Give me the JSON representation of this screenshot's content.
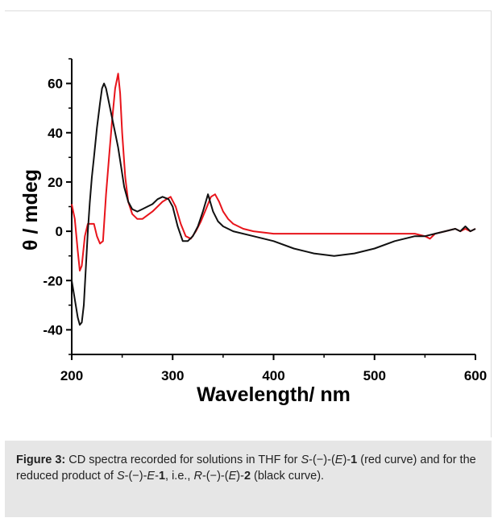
{
  "chart_data": {
    "type": "line",
    "xlabel": "Wavelength/ nm",
    "ylabel": "θ / mdeg",
    "xlim": [
      200,
      600
    ],
    "ylim": [
      -50,
      70
    ],
    "xticks": [
      "200",
      "300",
      "400",
      "500",
      "600"
    ],
    "yticks": [
      "-40",
      "-20",
      "0",
      "20",
      "40",
      "60"
    ],
    "xtick_values": [
      200,
      300,
      400,
      500,
      600
    ],
    "ytick_values": [
      -40,
      -20,
      0,
      20,
      40,
      60
    ],
    "grid": false,
    "series": [
      {
        "color": "#e8141b",
        "x": [
          200,
          203,
          206,
          208,
          210,
          213,
          216,
          219,
          222,
          225,
          228,
          231,
          234,
          237,
          240,
          243,
          246,
          248,
          250,
          253,
          256,
          260,
          265,
          270,
          280,
          290,
          298,
          303,
          308,
          313,
          318,
          323,
          328,
          333,
          338,
          342,
          346,
          350,
          355,
          360,
          370,
          380,
          400,
          430,
          460,
          500,
          540,
          550,
          555,
          560,
          570,
          580,
          585,
          590,
          595,
          600
        ],
        "y": [
          11,
          5,
          -8,
          -16,
          -14,
          -2,
          3,
          3,
          3,
          -2,
          -5,
          -4,
          15,
          30,
          45,
          58,
          64,
          56,
          40,
          22,
          12,
          7,
          5,
          5,
          8,
          12,
          14,
          10,
          3,
          -2,
          -3,
          0,
          4,
          9,
          14,
          15,
          12,
          8,
          5,
          3,
          1,
          0,
          -1,
          -1,
          -1,
          -1,
          -1,
          -2,
          -3,
          -1,
          0,
          1,
          0,
          1,
          0,
          1
        ]
      },
      {
        "color": "#111111",
        "x": [
          200,
          202,
          204,
          206,
          208,
          210,
          212,
          214,
          216,
          218,
          220,
          222,
          225,
          228,
          230,
          232,
          234,
          236,
          238,
          240,
          243,
          246,
          249,
          252,
          256,
          260,
          265,
          270,
          275,
          280,
          285,
          290,
          296,
          300,
          305,
          310,
          315,
          320,
          325,
          330,
          335,
          340,
          345,
          350,
          360,
          380,
          400,
          420,
          440,
          460,
          480,
          500,
          520,
          540,
          550,
          560,
          570,
          580,
          585,
          590,
          595,
          600
        ],
        "y": [
          -20,
          -25,
          -30,
          -35,
          -38,
          -37,
          -30,
          -15,
          0,
          12,
          22,
          30,
          42,
          52,
          58,
          60,
          58,
          54,
          50,
          46,
          40,
          34,
          26,
          18,
          12,
          9,
          8,
          9,
          10,
          11,
          13,
          14,
          13,
          10,
          2,
          -4,
          -4,
          -2,
          2,
          8,
          15,
          8,
          4,
          2,
          0,
          -2,
          -4,
          -7,
          -9,
          -10,
          -9,
          -7,
          -4,
          -2,
          -2,
          -1,
          0,
          1,
          0,
          2,
          0,
          1
        ]
      }
    ]
  },
  "caption": {
    "label": "Figure 3:",
    "t1": " CD spectra recorded for solutions in THF for ",
    "s1": "S",
    "t2": "-(−)-(",
    "e1": "E",
    "t3": ")-",
    "b1": "1",
    "t4": " (red curve) and for the reduced product of ",
    "s2": "S",
    "t5": "-(−)-",
    "e2": "E",
    "t6": "-",
    "b2": "1",
    "t7": ", i.e., ",
    "r1": "R",
    "t8": "-(−)-(",
    "e3": "E",
    "t9": ")-",
    "b3": "2",
    "t10": " (black curve)."
  }
}
